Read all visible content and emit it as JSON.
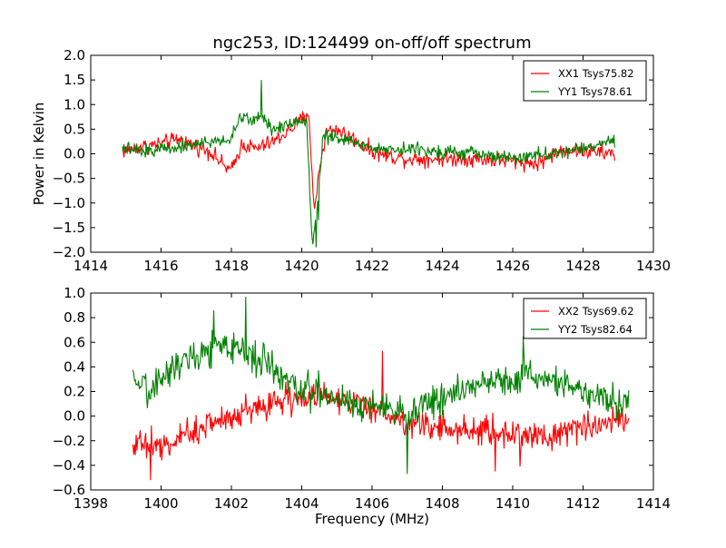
{
  "chart_data": [
    {
      "type": "line",
      "title": "ngc253, ID:124499 on-off/off spectrum",
      "xlabel": "",
      "ylabel": "Power in Kelvin",
      "xlim": [
        1414,
        1430
      ],
      "ylim": [
        -2.0,
        2.0
      ],
      "xticks": [
        "1414",
        "1416",
        "1418",
        "1420",
        "1422",
        "1424",
        "1426",
        "1428",
        "1430"
      ],
      "yticks": [
        "2.0",
        "1.5",
        "1.0",
        "0.5",
        "0.0",
        "−0.5",
        "−1.0",
        "−1.5",
        "−2.0"
      ],
      "grid": false,
      "legend_position": "top-right",
      "series": [
        {
          "name": "XX1 Tsys75.82",
          "color": "#ff0000",
          "x_range": [
            1414.9,
            1428.9
          ],
          "points": [
            [
              1414.9,
              0.05
            ],
            [
              1415.5,
              0.15
            ],
            [
              1416.0,
              0.2
            ],
            [
              1416.5,
              0.3
            ],
            [
              1417.0,
              0.15
            ],
            [
              1417.4,
              0.05
            ],
            [
              1417.8,
              -0.25
            ],
            [
              1418.0,
              -0.35
            ],
            [
              1418.3,
              0.2
            ],
            [
              1418.7,
              0.1
            ],
            [
              1419.2,
              0.25
            ],
            [
              1419.6,
              0.45
            ],
            [
              1420.0,
              0.7
            ],
            [
              1420.2,
              0.85
            ],
            [
              1420.35,
              -1.2
            ],
            [
              1420.5,
              -0.3
            ],
            [
              1420.7,
              0.45
            ],
            [
              1421.0,
              0.5
            ],
            [
              1421.6,
              0.25
            ],
            [
              1422.0,
              0.05
            ],
            [
              1422.5,
              -0.05
            ],
            [
              1423.0,
              -0.1
            ],
            [
              1424.0,
              -0.1
            ],
            [
              1425.0,
              -0.1
            ],
            [
              1426.0,
              -0.15
            ],
            [
              1426.7,
              -0.2
            ],
            [
              1427.2,
              0.0
            ],
            [
              1427.5,
              0.1
            ],
            [
              1428.0,
              0.05
            ],
            [
              1428.9,
              0.0
            ]
          ],
          "noise": 0.12
        },
        {
          "name": "YY1 Tsys78.61",
          "color": "#008000",
          "x_range": [
            1414.9,
            1428.9
          ],
          "points": [
            [
              1414.9,
              0.1
            ],
            [
              1415.5,
              0.05
            ],
            [
              1416.0,
              0.1
            ],
            [
              1416.5,
              0.15
            ],
            [
              1417.0,
              0.2
            ],
            [
              1417.5,
              0.25
            ],
            [
              1418.0,
              0.3
            ],
            [
              1418.2,
              0.7
            ],
            [
              1418.6,
              0.7
            ],
            [
              1418.9,
              0.75
            ],
            [
              1419.2,
              0.5
            ],
            [
              1419.6,
              0.6
            ],
            [
              1420.0,
              0.7
            ],
            [
              1420.15,
              0.6
            ],
            [
              1420.3,
              -1.9
            ],
            [
              1420.45,
              -1.0
            ],
            [
              1420.6,
              0.4
            ],
            [
              1421.0,
              0.3
            ],
            [
              1421.5,
              0.25
            ],
            [
              1422.0,
              0.1
            ],
            [
              1423.0,
              0.1
            ],
            [
              1424.0,
              0.05
            ],
            [
              1425.0,
              0.0
            ],
            [
              1426.0,
              -0.1
            ],
            [
              1427.0,
              0.0
            ],
            [
              1427.5,
              0.05
            ],
            [
              1428.0,
              0.1
            ],
            [
              1428.4,
              0.2
            ],
            [
              1428.9,
              0.25
            ]
          ],
          "spikes": [
            [
              1418.85,
              1.5
            ],
            [
              1420.4,
              -1.9
            ],
            [
              1420.48,
              -1.35
            ]
          ],
          "noise": 0.1
        }
      ]
    },
    {
      "type": "line",
      "title": "",
      "xlabel": "Frequency (MHz)",
      "ylabel": "",
      "xlim": [
        1398,
        1414
      ],
      "ylim": [
        -0.6,
        1.0
      ],
      "xticks": [
        "1398",
        "1400",
        "1402",
        "1404",
        "1406",
        "1408",
        "1410",
        "1412",
        "1414"
      ],
      "yticks": [
        "1.0",
        "0.8",
        "0.6",
        "0.4",
        "0.2",
        "0.0",
        "−0.2",
        "−0.4",
        "−0.6"
      ],
      "grid": false,
      "legend_position": "top-right",
      "series": [
        {
          "name": "XX2 Tsys69.62",
          "color": "#ff0000",
          "x_range": [
            1399.2,
            1413.3
          ],
          "points": [
            [
              1399.2,
              -0.2
            ],
            [
              1400.0,
              -0.25
            ],
            [
              1400.5,
              -0.2
            ],
            [
              1401.0,
              -0.1
            ],
            [
              1401.5,
              -0.05
            ],
            [
              1402.0,
              0.0
            ],
            [
              1402.5,
              0.05
            ],
            [
              1403.0,
              0.1
            ],
            [
              1403.5,
              0.15
            ],
            [
              1404.0,
              0.12
            ],
            [
              1404.5,
              0.2
            ],
            [
              1405.0,
              0.15
            ],
            [
              1405.5,
              0.1
            ],
            [
              1406.0,
              0.05
            ],
            [
              1406.5,
              0.0
            ],
            [
              1407.0,
              -0.05
            ],
            [
              1408.0,
              -0.1
            ],
            [
              1409.0,
              -0.12
            ],
            [
              1410.0,
              -0.15
            ],
            [
              1411.0,
              -0.15
            ],
            [
              1412.0,
              -0.1
            ],
            [
              1412.5,
              -0.05
            ],
            [
              1413.3,
              0.0
            ]
          ],
          "spikes": [
            [
              1406.3,
              0.53
            ],
            [
              1399.7,
              -0.52
            ],
            [
              1410.2,
              -0.41
            ],
            [
              1409.5,
              -0.45
            ]
          ],
          "noise": 0.09
        },
        {
          "name": "YY2 Tsys82.64",
          "color": "#008000",
          "x_range": [
            1399.2,
            1413.3
          ],
          "points": [
            [
              1399.2,
              0.25
            ],
            [
              1399.6,
              0.2
            ],
            [
              1400.0,
              0.3
            ],
            [
              1400.5,
              0.45
            ],
            [
              1401.0,
              0.5
            ],
            [
              1401.5,
              0.55
            ],
            [
              1402.0,
              0.55
            ],
            [
              1402.5,
              0.5
            ],
            [
              1403.0,
              0.45
            ],
            [
              1403.5,
              0.3
            ],
            [
              1404.0,
              0.2
            ],
            [
              1404.5,
              0.2
            ],
            [
              1405.0,
              0.15
            ],
            [
              1405.5,
              0.1
            ],
            [
              1406.0,
              0.08
            ],
            [
              1406.5,
              0.05
            ],
            [
              1407.0,
              0.0
            ],
            [
              1407.5,
              0.1
            ],
            [
              1408.0,
              0.15
            ],
            [
              1408.5,
              0.2
            ],
            [
              1409.0,
              0.25
            ],
            [
              1409.5,
              0.3
            ],
            [
              1410.0,
              0.3
            ],
            [
              1410.5,
              0.35
            ],
            [
              1411.0,
              0.3
            ],
            [
              1411.5,
              0.25
            ],
            [
              1412.0,
              0.2
            ],
            [
              1412.5,
              0.15
            ],
            [
              1413.3,
              0.1
            ]
          ],
          "spikes": [
            [
              1402.4,
              0.97
            ],
            [
              1401.5,
              0.86
            ],
            [
              1407.0,
              -0.47
            ],
            [
              1410.3,
              0.65
            ]
          ],
          "noise": 0.1
        }
      ]
    }
  ]
}
